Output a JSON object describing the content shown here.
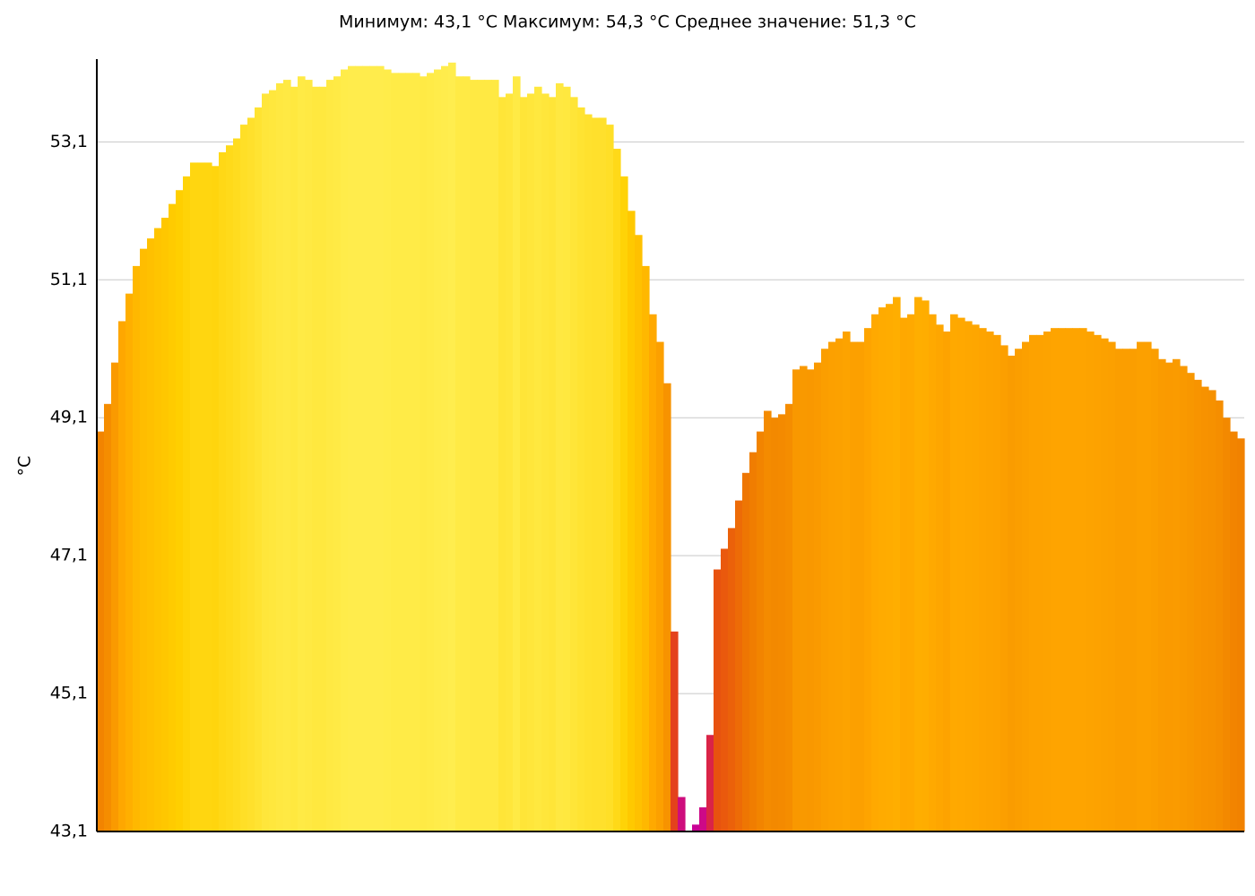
{
  "chart_data": {
    "type": "bar",
    "title": "Минимум:  43,1  °C Максимум:  54,3  °C Среднее  значение:  51,3  °C",
    "ylabel": "°C",
    "ylim": [
      43.1,
      54.3
    ],
    "yticks": [
      {
        "value": 43.1,
        "label": "43,1"
      },
      {
        "value": 45.1,
        "label": "45,1"
      },
      {
        "value": 47.1,
        "label": "47,1"
      },
      {
        "value": 49.1,
        "label": "49,1"
      },
      {
        "value": 51.1,
        "label": "51,1"
      },
      {
        "value": 53.1,
        "label": "53,1"
      }
    ],
    "grid": true,
    "colormap": [
      "#c8009c",
      "#e0302a",
      "#e85010",
      "#f08000",
      "#ffa800",
      "#ffd000",
      "#ffee50"
    ],
    "values": [
      48.9,
      49.3,
      49.9,
      50.5,
      50.9,
      51.3,
      51.55,
      51.7,
      51.85,
      52.0,
      52.2,
      52.4,
      52.6,
      52.8,
      52.8,
      52.8,
      52.75,
      52.95,
      53.05,
      53.15,
      53.35,
      53.45,
      53.6,
      53.8,
      53.85,
      53.95,
      54.0,
      53.9,
      54.05,
      54.0,
      53.9,
      53.9,
      54.0,
      54.05,
      54.15,
      54.2,
      54.2,
      54.2,
      54.2,
      54.2,
      54.15,
      54.1,
      54.1,
      54.1,
      54.1,
      54.05,
      54.1,
      54.15,
      54.2,
      54.25,
      54.05,
      54.05,
      54.0,
      54.0,
      54.0,
      54.0,
      53.75,
      53.8,
      54.05,
      53.75,
      53.8,
      53.9,
      53.8,
      53.75,
      53.95,
      53.9,
      53.75,
      53.6,
      53.5,
      53.45,
      53.45,
      53.35,
      53.0,
      52.6,
      52.1,
      51.75,
      51.3,
      50.6,
      50.2,
      49.6,
      46.0,
      43.6,
      43.1,
      43.2,
      43.45,
      44.5,
      46.9,
      47.2,
      47.5,
      47.9,
      48.3,
      48.6,
      48.9,
      49.2,
      49.1,
      49.15,
      49.3,
      49.8,
      49.85,
      49.8,
      49.9,
      50.1,
      50.2,
      50.25,
      50.35,
      50.2,
      50.2,
      50.4,
      50.6,
      50.7,
      50.75,
      50.85,
      50.55,
      50.6,
      50.85,
      50.8,
      50.6,
      50.45,
      50.35,
      50.6,
      50.55,
      50.5,
      50.45,
      50.4,
      50.35,
      50.3,
      50.15,
      50.0,
      50.1,
      50.2,
      50.3,
      50.3,
      50.35,
      50.4,
      50.4,
      50.4,
      50.4,
      50.4,
      50.35,
      50.3,
      50.25,
      50.2,
      50.1,
      50.1,
      50.1,
      50.2,
      50.2,
      50.1,
      49.95,
      49.9,
      49.95,
      49.85,
      49.75,
      49.65,
      49.55,
      49.5,
      49.35,
      49.1,
      48.9,
      48.8
    ]
  }
}
